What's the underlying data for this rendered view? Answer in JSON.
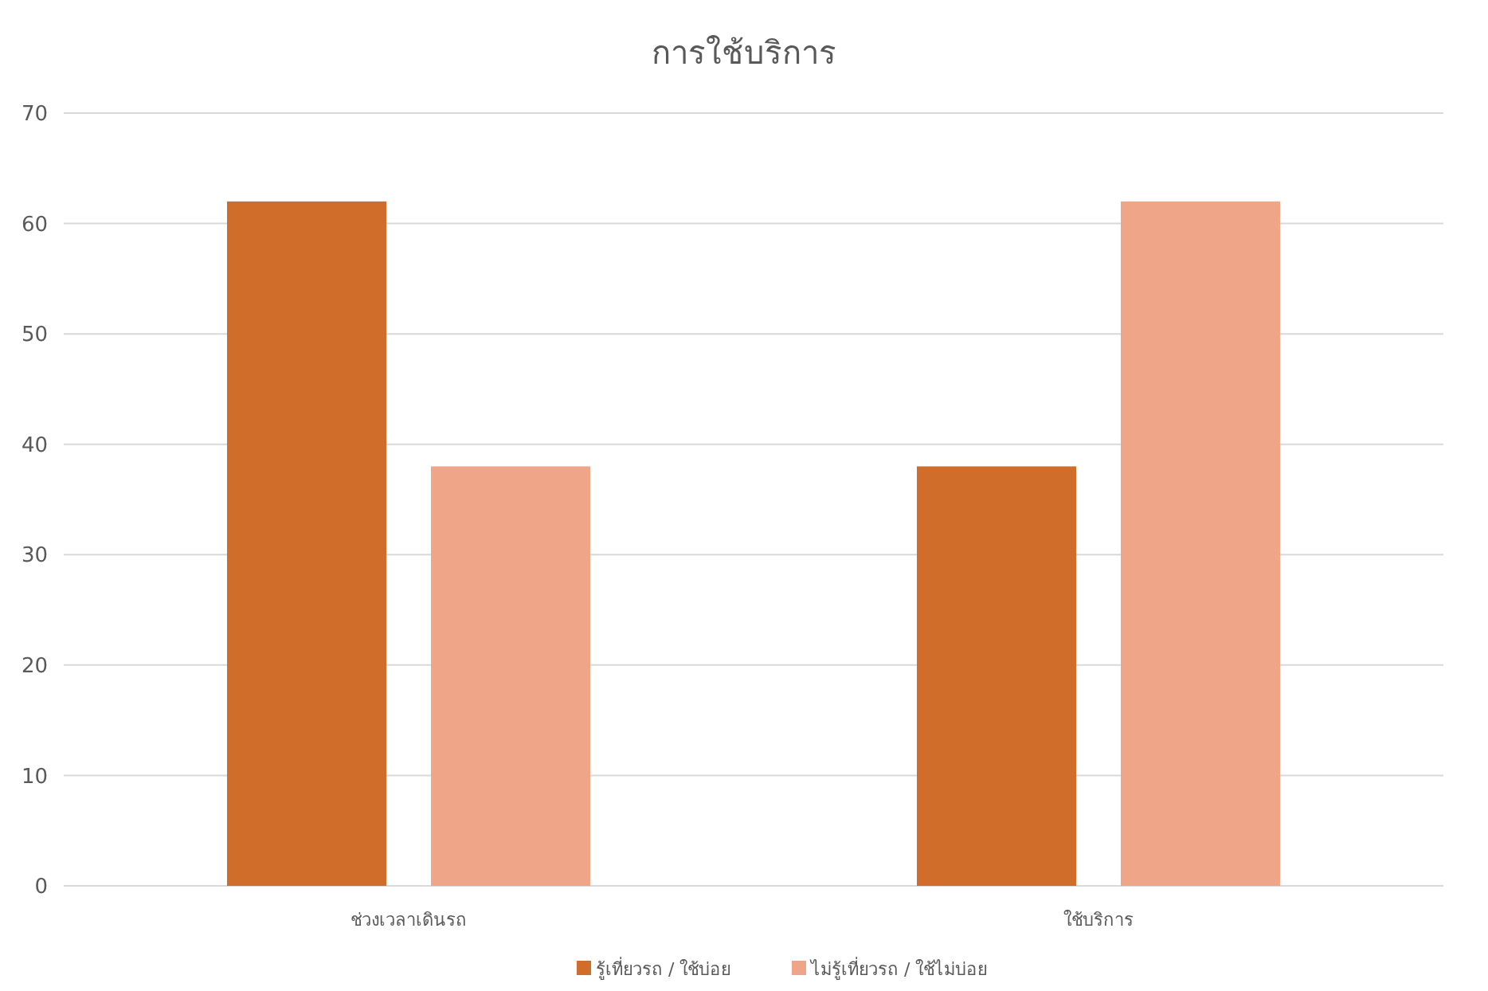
{
  "chart_data": {
    "type": "bar",
    "title": "การใช้บริการ",
    "categories": [
      "ช่วงเวลาเดินรถ",
      "ใช้บริการ"
    ],
    "series": [
      {
        "name": "รู้เที่ยวรถ / ใช้บ่อย",
        "color": "#d06d2a",
        "values": [
          62,
          38
        ]
      },
      {
        "name": "ไม่รู้เที่ยวรถ / ใช้ไม่บ่อย",
        "color": "#efa688",
        "values": [
          38,
          62
        ]
      }
    ],
    "ylim": [
      0,
      70
    ],
    "yticks": [
      0,
      10,
      20,
      30,
      40,
      50,
      60,
      70
    ],
    "grid": "y",
    "legend": "bottom"
  }
}
